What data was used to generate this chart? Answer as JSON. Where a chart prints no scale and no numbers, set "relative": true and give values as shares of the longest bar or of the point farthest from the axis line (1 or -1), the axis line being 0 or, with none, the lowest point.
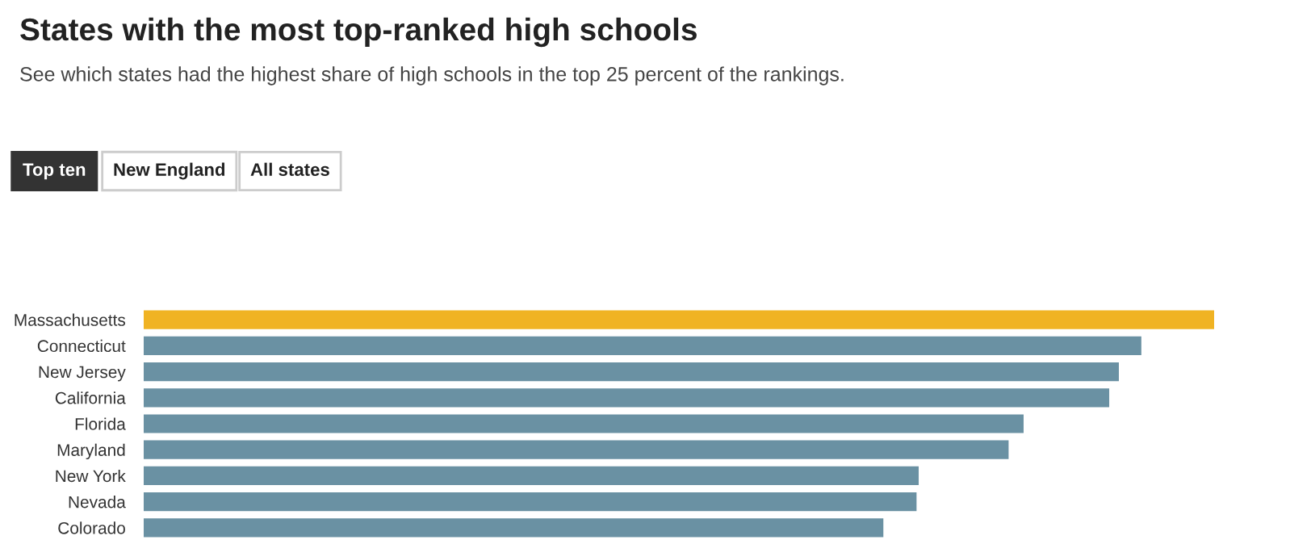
{
  "chart_data": {
    "type": "bar",
    "orientation": "horizontal",
    "relative": true,
    "title": "States with the most top-ranked high schools",
    "subtitle": "See which states had the highest share of high schools in the top 25 percent of the rankings.",
    "annotations": [
      "Top ten",
      "New England",
      "All states"
    ],
    "categories": [
      "Massachusetts",
      "Connecticut",
      "New Jersey",
      "California",
      "Florida",
      "Maryland",
      "New York",
      "Nevada",
      "Colorado"
    ],
    "values": [
      1,
      0.932,
      0.911,
      0.902,
      0.822,
      0.808,
      0.724,
      0.722,
      0.691
    ],
    "colors": [
      "#f0b323",
      "#6a91a3",
      "#6a91a3",
      "#6a91a3",
      "#6a91a3",
      "#6a91a3",
      "#6a91a3",
      "#6a91a3",
      "#6a91a3"
    ]
  }
}
